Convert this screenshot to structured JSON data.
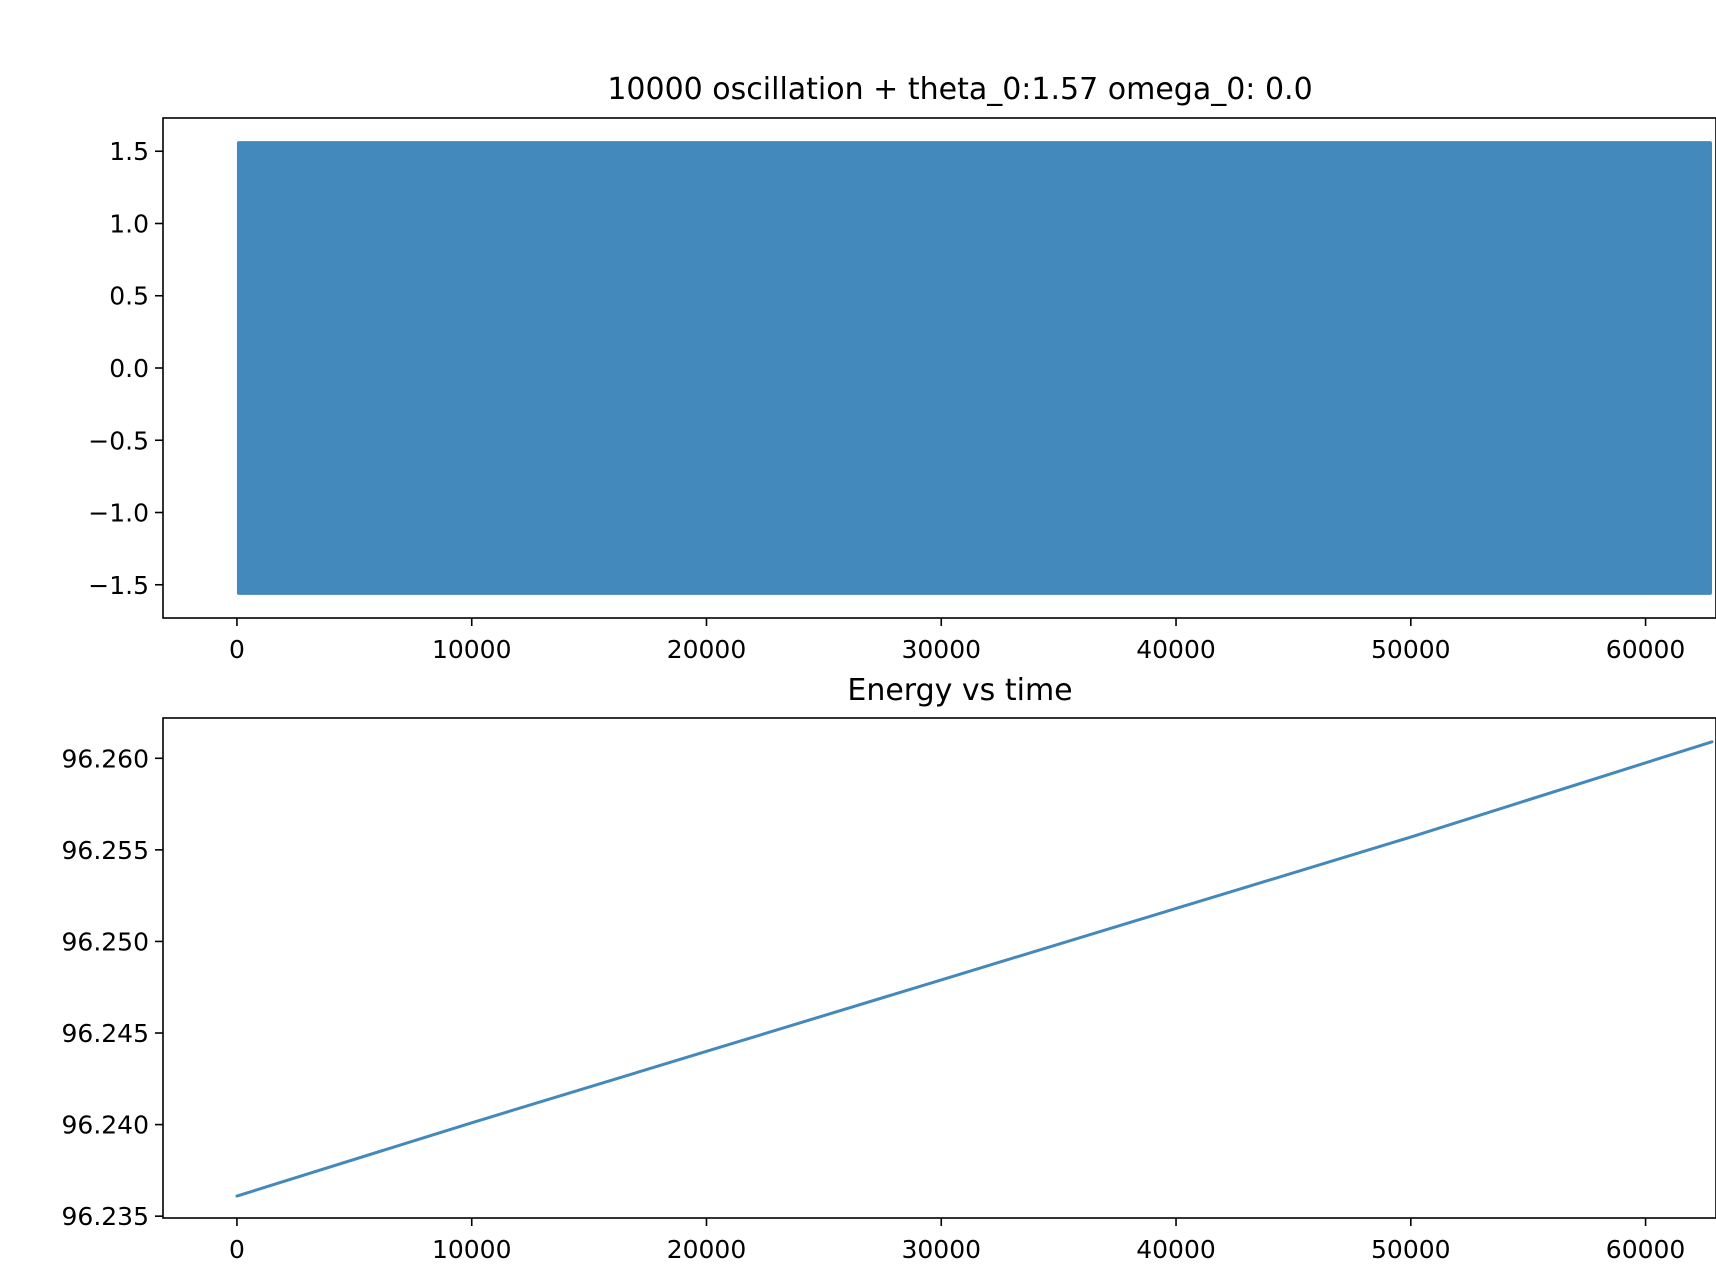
{
  "chart_data": [
    {
      "type": "area",
      "title": "10000 oscillation + theta_0:1.57 omega_0: 0.0",
      "xlabel": "",
      "ylabel": "",
      "xlim": [
        -3150,
        63000
      ],
      "ylim": [
        -1.73,
        1.73
      ],
      "grid": false,
      "xticks": [
        0,
        10000,
        20000,
        30000,
        40000,
        50000,
        60000
      ],
      "xtick_labels": [
        "0",
        "10000",
        "20000",
        "30000",
        "40000",
        "50000",
        "60000"
      ],
      "yticks": [
        1.5,
        1.0,
        0.5,
        0.0,
        -0.5,
        -1.0,
        -1.5
      ],
      "ytick_labels": [
        "1.5",
        "1.0",
        "0.5",
        "0.0",
        "−0.5",
        "−1.0",
        "−1.5"
      ],
      "series": [
        {
          "x_range": [
            0,
            62830
          ],
          "y_max": 1.57,
          "y_min": -1.57,
          "color": "#4389bb"
        }
      ]
    },
    {
      "type": "line",
      "title": "Energy vs time",
      "xlabel": "",
      "ylabel": "",
      "xlim": [
        -3150,
        63000
      ],
      "ylim": [
        96.2349,
        96.2622
      ],
      "grid": false,
      "xticks": [
        0,
        10000,
        20000,
        30000,
        40000,
        50000,
        60000
      ],
      "xtick_labels": [
        "0",
        "10000",
        "20000",
        "30000",
        "40000",
        "50000",
        "60000"
      ],
      "yticks": [
        96.26,
        96.255,
        96.25,
        96.245,
        96.24,
        96.235
      ],
      "ytick_labels": [
        "96.260",
        "96.255",
        "96.250",
        "96.245",
        "96.240",
        "96.235"
      ],
      "series": [
        {
          "x": [
            0,
            10000,
            20000,
            30000,
            40000,
            50000,
            62830
          ],
          "y": [
            96.2361,
            96.2401,
            96.244,
            96.2479,
            96.2518,
            96.2557,
            96.2609
          ],
          "color": "#4389bb"
        }
      ]
    }
  ]
}
